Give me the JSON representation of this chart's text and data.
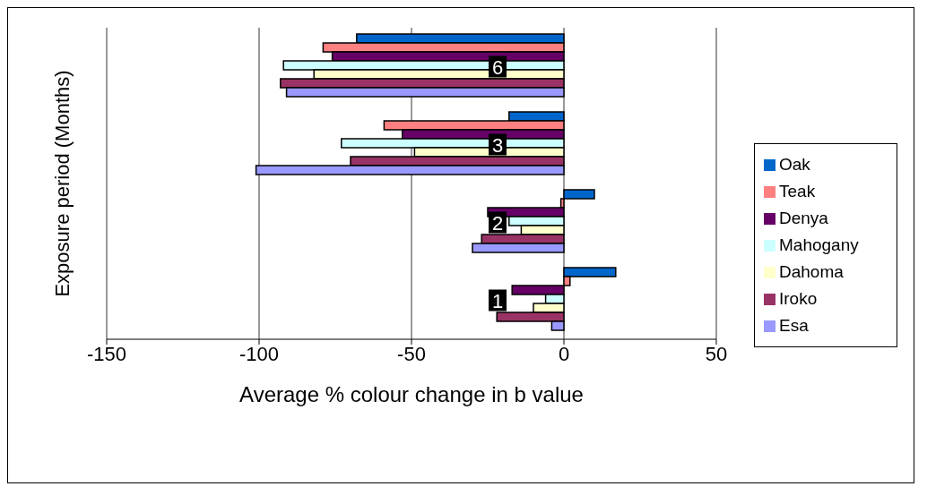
{
  "chart_data": {
    "type": "bar",
    "orientation": "horizontal",
    "xlabel": "Average % colour change in b value",
    "ylabel": "Exposure period (Months)",
    "categories": [
      "6",
      "3",
      "2",
      "1"
    ],
    "series": [
      {
        "name": "Oak",
        "color": "#0066cc",
        "values": [
          -68,
          -18,
          10,
          17
        ]
      },
      {
        "name": "Teak",
        "color": "#ff8080",
        "values": [
          -79,
          -59,
          -1,
          2
        ]
      },
      {
        "name": "Denya",
        "color": "#660066",
        "values": [
          -76,
          -53,
          -25,
          -17
        ]
      },
      {
        "name": "Mahogany",
        "color": "#ccffff",
        "values": [
          -92,
          -73,
          -18,
          -6
        ]
      },
      {
        "name": "Dahoma",
        "color": "#ffffcc",
        "values": [
          -82,
          -49,
          -14,
          -10
        ]
      },
      {
        "name": "Iroko",
        "color": "#993366",
        "values": [
          -93,
          -70,
          -27,
          -22
        ]
      },
      {
        "name": "Esa",
        "color": "#9999ff",
        "values": [
          -91,
          -101,
          -30,
          -4
        ]
      }
    ],
    "xlim": [
      -150,
      50
    ],
    "xticks": [
      -150,
      -100,
      -50,
      0,
      50
    ],
    "grid": "x",
    "legend": "right"
  }
}
